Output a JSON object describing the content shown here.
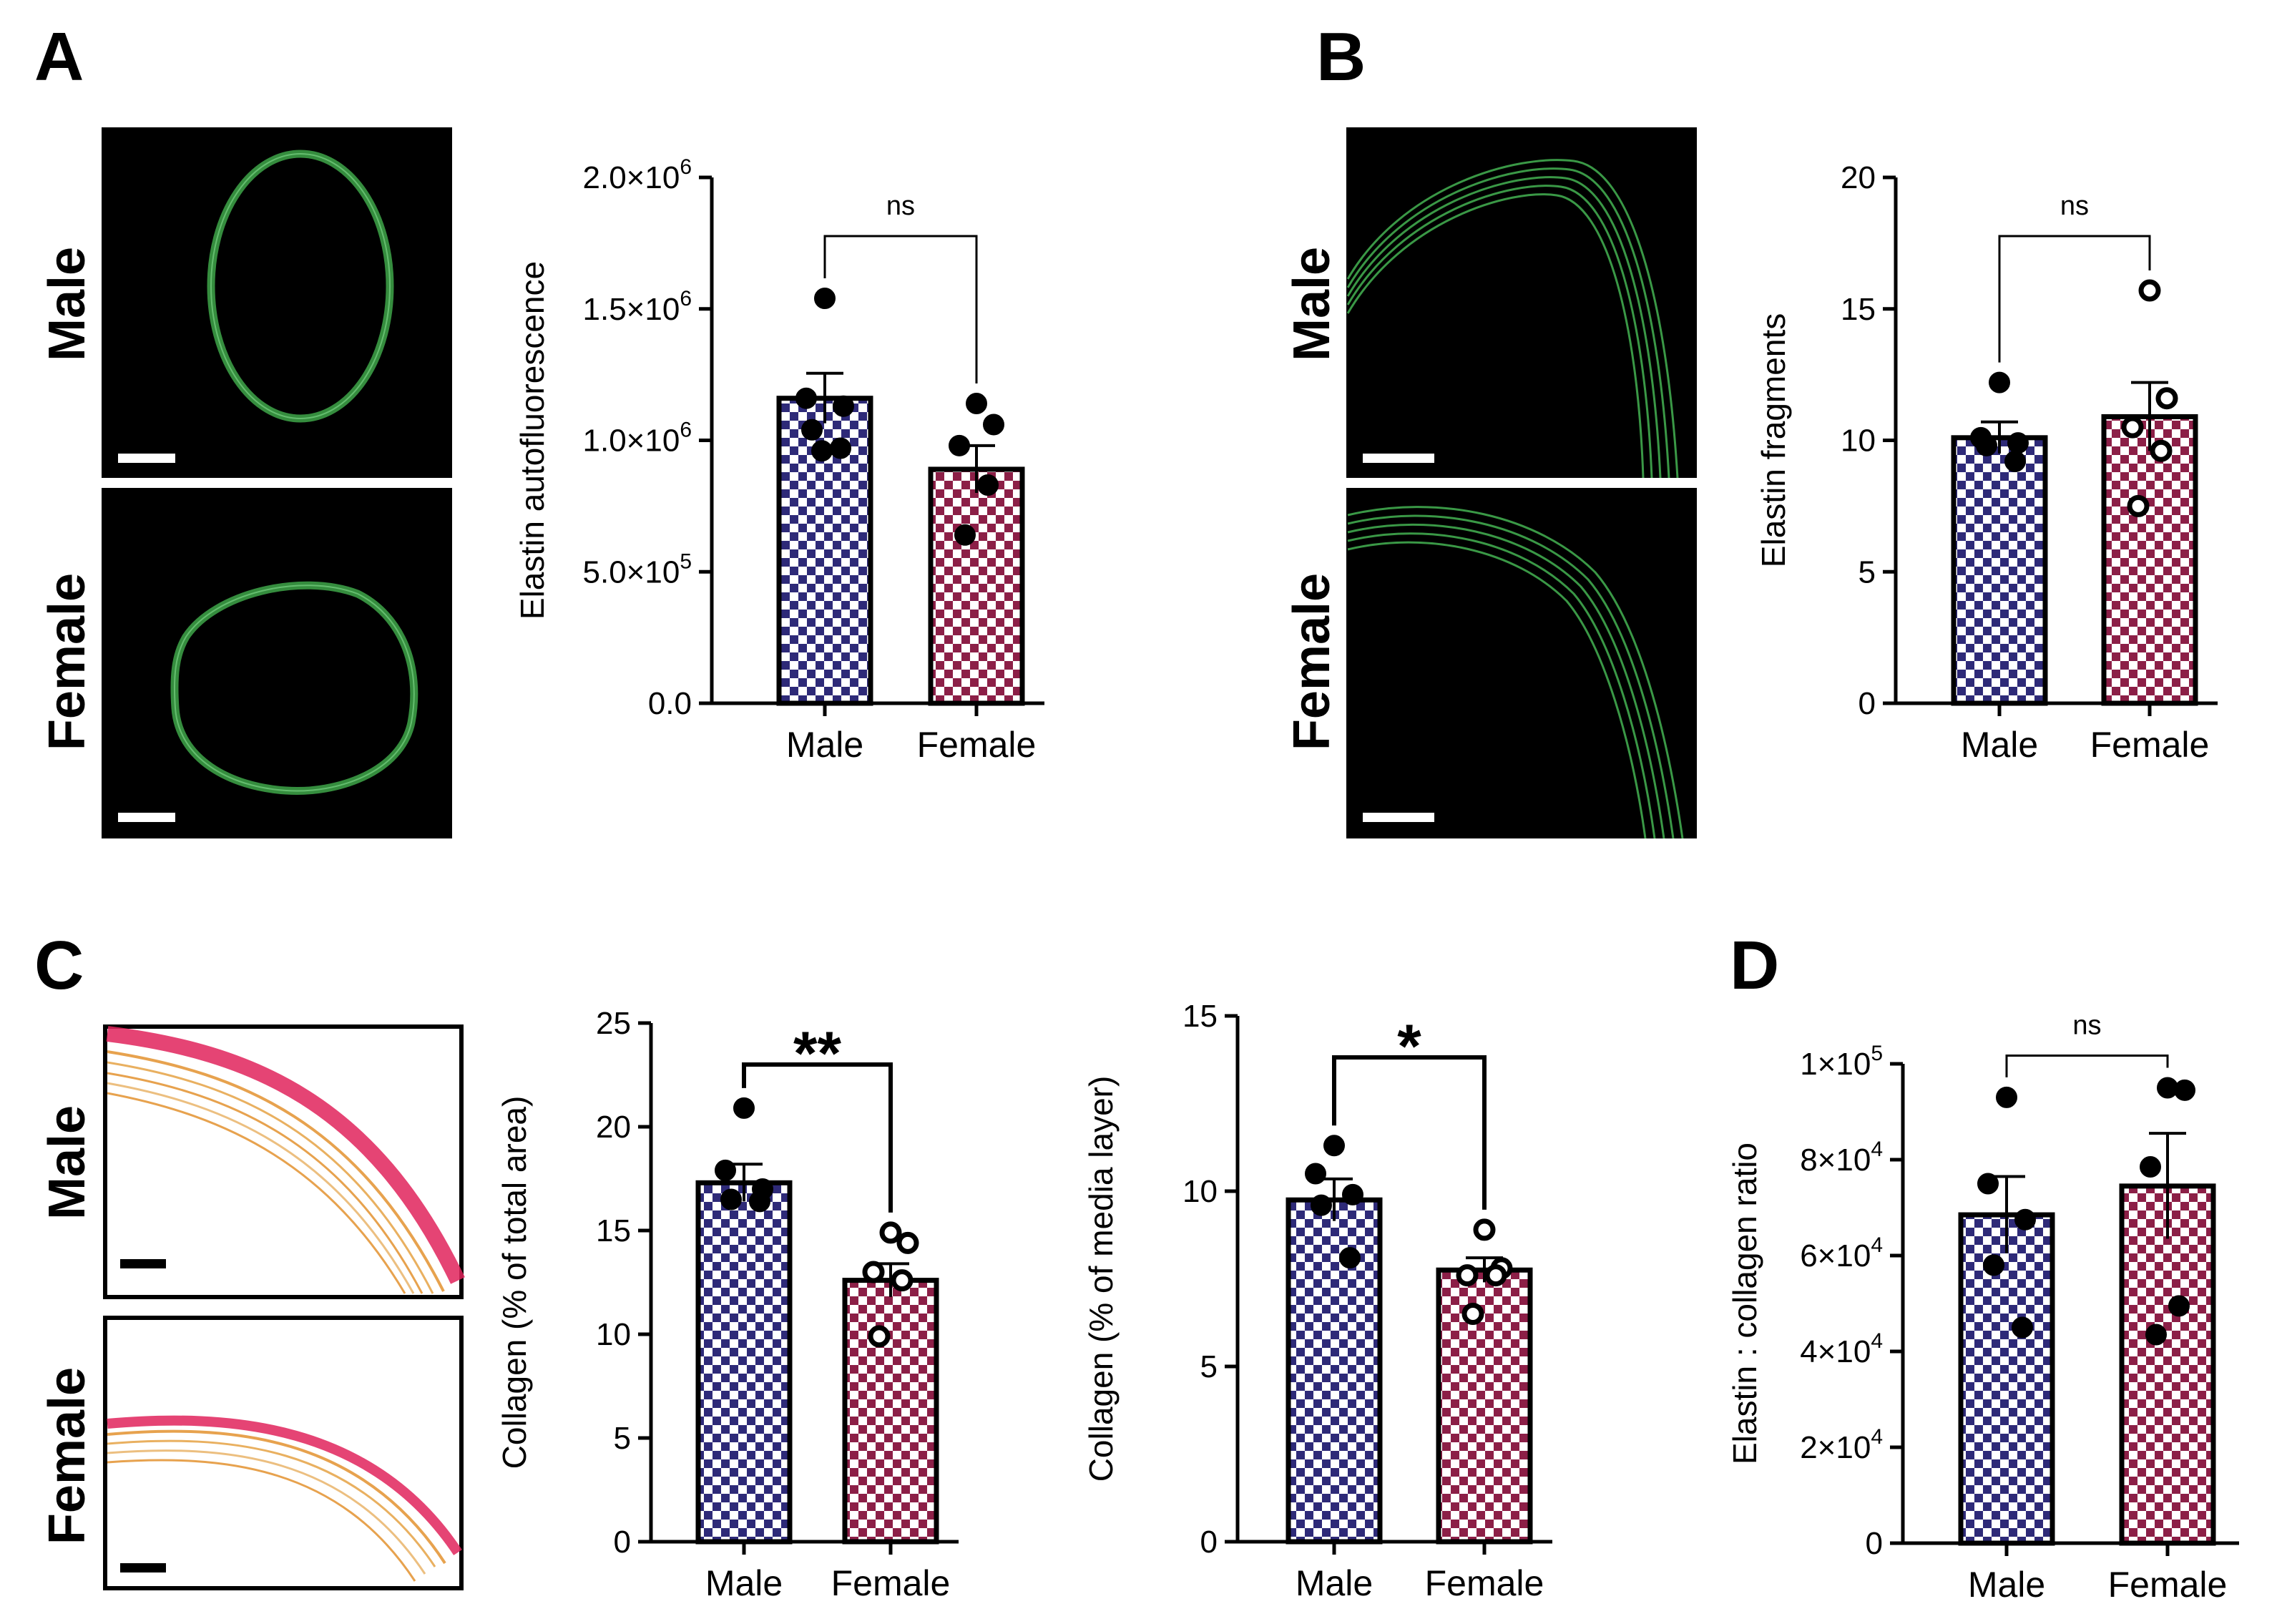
{
  "colors": {
    "male": "#2e2a78",
    "female": "#8c1f47",
    "green": "#3fa84a",
    "red": "#e0235c",
    "orange": "#e7a24e"
  },
  "panels": {
    "A": {
      "letter": "A",
      "male_label": "Male",
      "female_label": "Female"
    },
    "B": {
      "letter": "B",
      "male_label": "Male",
      "female_label": "Female"
    },
    "C": {
      "letter": "C",
      "male_label": "Male",
      "female_label": "Female"
    },
    "D": {
      "letter": "D"
    }
  },
  "chart_data": [
    {
      "id": "A",
      "type": "bar",
      "categories": [
        "Male",
        "Female"
      ],
      "ylabel": "Elastin autofluorescence",
      "ylim": [
        0,
        2000000
      ],
      "yticks": [
        {
          "v": 0,
          "b": "0.0",
          "e": ""
        },
        {
          "v": 500000,
          "b": "5.0×10",
          "e": "5"
        },
        {
          "v": 1000000,
          "b": "1.0×10",
          "e": "6"
        },
        {
          "v": 1500000,
          "b": "1.5×10",
          "e": "6"
        },
        {
          "v": 2000000,
          "b": "2.0×10",
          "e": "6"
        }
      ],
      "means": [
        1160000,
        890000
      ],
      "sems": [
        95000,
        90000
      ],
      "points": [
        [
          1540000,
          1160000,
          1130000,
          1040000,
          970000,
          960000
        ],
        [
          1140000,
          1060000,
          980000,
          830000,
          640000
        ]
      ],
      "open_female": false,
      "significance": "ns",
      "significance_style": "ns"
    },
    {
      "id": "B",
      "type": "bar",
      "categories": [
        "Male",
        "Female"
      ],
      "ylabel": "Elastin fragments",
      "ylim": [
        0,
        20
      ],
      "yticks": [
        {
          "v": 0,
          "b": "0",
          "e": ""
        },
        {
          "v": 5,
          "b": "5",
          "e": ""
        },
        {
          "v": 10,
          "b": "10",
          "e": ""
        },
        {
          "v": 15,
          "b": "15",
          "e": ""
        },
        {
          "v": 20,
          "b": "20",
          "e": ""
        }
      ],
      "means": [
        10.1,
        10.9
      ],
      "sems": [
        0.6,
        1.3
      ],
      "points": [
        [
          12.2,
          10.1,
          9.9,
          9.8,
          9.2
        ],
        [
          15.7,
          11.6,
          10.5,
          9.6,
          7.5
        ]
      ],
      "open_female": true,
      "significance": "ns",
      "significance_style": "ns"
    },
    {
      "id": "C1",
      "type": "bar",
      "categories": [
        "Male",
        "Female"
      ],
      "ylabel": "Collagen (% of total area)",
      "ylim": [
        0,
        25
      ],
      "yticks": [
        {
          "v": 0,
          "b": "0",
          "e": ""
        },
        {
          "v": 5,
          "b": "5",
          "e": ""
        },
        {
          "v": 10,
          "b": "10",
          "e": ""
        },
        {
          "v": 15,
          "b": "15",
          "e": ""
        },
        {
          "v": 20,
          "b": "20",
          "e": ""
        },
        {
          "v": 25,
          "b": "25",
          "e": ""
        }
      ],
      "means": [
        17.3,
        12.6
      ],
      "sems": [
        0.9,
        0.8
      ],
      "points": [
        [
          20.9,
          17.9,
          17.0,
          16.5,
          16.4
        ],
        [
          14.9,
          14.4,
          13.0,
          12.6,
          9.9
        ]
      ],
      "open_female": true,
      "significance": "**",
      "significance_style": "star"
    },
    {
      "id": "C2",
      "type": "bar",
      "categories": [
        "Male",
        "Female"
      ],
      "ylabel": "Collagen (% of media layer)",
      "ylim": [
        0,
        15
      ],
      "yticks": [
        {
          "v": 0,
          "b": "0",
          "e": ""
        },
        {
          "v": 5,
          "b": "5",
          "e": ""
        },
        {
          "v": 10,
          "b": "10",
          "e": ""
        },
        {
          "v": 15,
          "b": "15",
          "e": ""
        }
      ],
      "means": [
        9.75,
        7.75
      ],
      "sems": [
        0.6,
        0.35
      ],
      "points": [
        [
          11.3,
          10.5,
          9.9,
          9.6,
          8.1
        ],
        [
          8.9,
          7.8,
          7.6,
          7.6,
          6.5
        ]
      ],
      "open_female": true,
      "significance": "*",
      "significance_style": "star"
    },
    {
      "id": "D",
      "type": "bar",
      "categories": [
        "Male",
        "Female"
      ],
      "ylabel": "Elastin : collagen ratio",
      "ylim": [
        0,
        100000
      ],
      "yticks": [
        {
          "v": 0,
          "b": "0",
          "e": ""
        },
        {
          "v": 20000,
          "b": "2×10",
          "e": "4"
        },
        {
          "v": 40000,
          "b": "4×10",
          "e": "4"
        },
        {
          "v": 60000,
          "b": "6×10",
          "e": "4"
        },
        {
          "v": 80000,
          "b": "8×10",
          "e": "4"
        },
        {
          "v": 100000,
          "b": "1×10",
          "e": "5"
        }
      ],
      "means": [
        68500,
        74500
      ],
      "sems": [
        8000,
        11000
      ],
      "points": [
        [
          93000,
          75000,
          67500,
          58000,
          45000
        ],
        [
          95000,
          94500,
          78500,
          49500,
          43500
        ]
      ],
      "open_female": false,
      "significance": "ns",
      "significance_style": "ns"
    }
  ]
}
